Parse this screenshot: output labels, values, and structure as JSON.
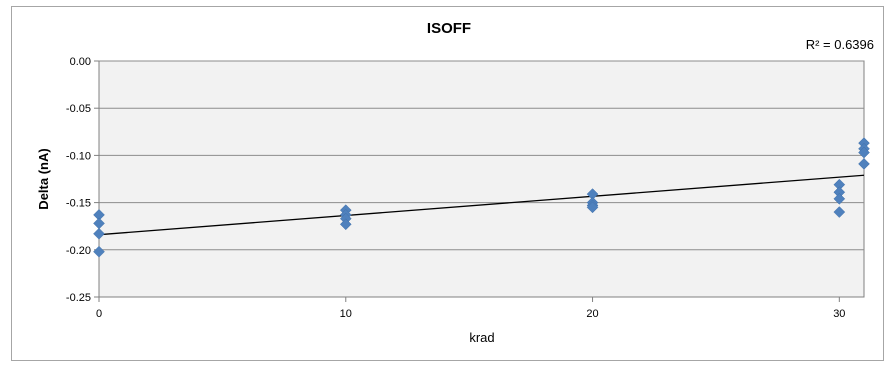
{
  "chart_data": {
    "type": "scatter",
    "title": "ISOFF",
    "xlabel": "krad",
    "ylabel": "Delta (nA)",
    "xlim": [
      0,
      31
    ],
    "ylim": [
      -0.25,
      0
    ],
    "x_ticks": [
      "0",
      "10",
      "20",
      "30"
    ],
    "y_ticks": [
      "0.00",
      "-0.05",
      "-0.10",
      "-0.15",
      "-0.20",
      "-0.25"
    ],
    "grid": "horizontal",
    "marker_color": "#4f81bd",
    "plot_background": "#f2f2f2",
    "points": [
      {
        "x": 0,
        "y": -0.163
      },
      {
        "x": 0,
        "y": -0.172
      },
      {
        "x": 0,
        "y": -0.183
      },
      {
        "x": 0,
        "y": -0.202
      },
      {
        "x": 10,
        "y": -0.158
      },
      {
        "x": 10,
        "y": -0.163
      },
      {
        "x": 10,
        "y": -0.167
      },
      {
        "x": 10,
        "y": -0.173
      },
      {
        "x": 20,
        "y": -0.141
      },
      {
        "x": 20,
        "y": -0.15
      },
      {
        "x": 20,
        "y": -0.153
      },
      {
        "x": 20,
        "y": -0.155
      },
      {
        "x": 30,
        "y": -0.131
      },
      {
        "x": 30,
        "y": -0.139
      },
      {
        "x": 30,
        "y": -0.146
      },
      {
        "x": 30,
        "y": -0.16
      },
      {
        "x": 31,
        "y": -0.087
      },
      {
        "x": 31,
        "y": -0.093
      },
      {
        "x": 31,
        "y": -0.097
      },
      {
        "x": 31,
        "y": -0.109
      }
    ],
    "trendline": {
      "type": "linear",
      "from": {
        "x": 0,
        "y": -0.184
      },
      "to": {
        "x": 31,
        "y": -0.121
      },
      "r2_label": "R² = 0.6396"
    }
  }
}
